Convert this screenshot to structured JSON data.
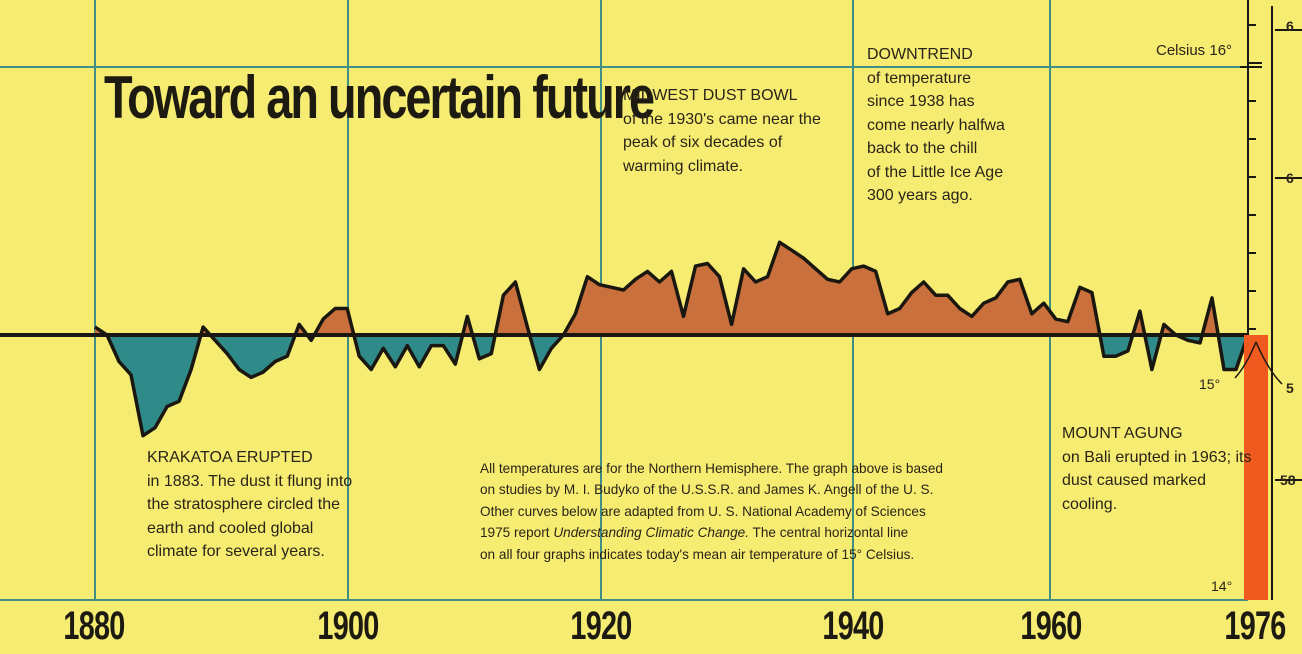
{
  "title": "Toward an uncertain future",
  "annotations": {
    "krakatoa": {
      "head": "KRAKATOA ERUPTED",
      "body": "in 1883. The dust it flung into the stratosphere circled the earth and cooled global climate for several years."
    },
    "dustbowl": {
      "head": "MIDWEST DUST BOWL",
      "body": "of the 1930's came near the peak of six decades of warming climate."
    },
    "downtrend": {
      "head": "DOWNTREND",
      "lines": [
        "of temperature",
        "since 1938 has",
        "come nearly halfwa",
        "back to the chill",
        "of the Little Ice Age",
        "300 years ago."
      ]
    },
    "agung": {
      "head": "MOUNT AGUNG",
      "body": "on Bali erupted in 1963; its dust caused marked cooling."
    }
  },
  "footnote": {
    "line1": "All temperatures are for the Northern Hemisphere. The graph above is based",
    "line2": "on studies by M. I. Budyko of the U.S.S.R. and James K. Angell of the U. S.",
    "line3": "Other curves below are adapted from U. S. National Academy of Sciences",
    "line4a": "1975 report ",
    "line4b": "Understanding Climatic Change.",
    "line4c": " The central horizontal line",
    "line5": "on all four graphs indicates today's mean air temperature of 15° Celsius."
  },
  "scale_labels": {
    "celsius16": "Celsius 16°",
    "c15": "15°",
    "c14": "14°"
  },
  "right_edge_ticks": [
    "6",
    "6",
    "5",
    "58"
  ],
  "colors": {
    "background": "#f6ec72",
    "warm": "#c9703c",
    "cool": "#2f8a8a",
    "line": "#1a1710",
    "grid": "#3f8f86",
    "thermometer": "#f05a1e"
  },
  "chart_data": {
    "type": "area",
    "baseline_label": "15° Celsius (today's mean)",
    "x_ticks": [
      "1880",
      "1900",
      "1920",
      "1940",
      "1960",
      "1976"
    ],
    "xlim": [
      1880,
      1976
    ],
    "ylim": [
      14,
      16
    ],
    "x": [
      1880,
      1881,
      1882,
      1883,
      1884,
      1885,
      1886,
      1887,
      1888,
      1889,
      1890,
      1891,
      1892,
      1893,
      1894,
      1895,
      1896,
      1897,
      1898,
      1899,
      1900,
      1901,
      1902,
      1903,
      1904,
      1905,
      1906,
      1907,
      1908,
      1909,
      1910,
      1911,
      1912,
      1913,
      1914,
      1915,
      1916,
      1917,
      1918,
      1919,
      1920,
      1921,
      1922,
      1923,
      1924,
      1925,
      1926,
      1927,
      1928,
      1929,
      1930,
      1931,
      1932,
      1933,
      1934,
      1935,
      1936,
      1937,
      1938,
      1939,
      1940,
      1941,
      1942,
      1943,
      1944,
      1945,
      1946,
      1947,
      1948,
      1949,
      1950,
      1951,
      1952,
      1953,
      1954,
      1955,
      1956,
      1957,
      1958,
      1959,
      1960,
      1961,
      1962,
      1963,
      1964,
      1965,
      1966,
      1967,
      1968,
      1969,
      1970,
      1971,
      1972,
      1973,
      1974,
      1975,
      1976
    ],
    "values": [
      15.03,
      15.0,
      14.9,
      14.85,
      14.62,
      14.65,
      14.73,
      14.75,
      14.87,
      15.03,
      14.98,
      14.93,
      14.87,
      14.84,
      14.86,
      14.9,
      14.92,
      15.04,
      14.98,
      15.06,
      15.1,
      15.1,
      14.92,
      14.87,
      14.95,
      14.88,
      14.96,
      14.88,
      14.96,
      14.96,
      14.89,
      15.07,
      14.91,
      14.93,
      15.15,
      15.2,
      15.03,
      14.87,
      14.95,
      15.0,
      15.08,
      15.22,
      15.19,
      15.18,
      15.17,
      15.21,
      15.24,
      15.2,
      15.24,
      15.07,
      15.26,
      15.27,
      15.22,
      15.04,
      15.25,
      15.2,
      15.22,
      15.35,
      15.32,
      15.29,
      15.25,
      15.21,
      15.2,
      15.25,
      15.26,
      15.24,
      15.08,
      15.1,
      15.16,
      15.2,
      15.15,
      15.15,
      15.1,
      15.07,
      15.12,
      15.14,
      15.2,
      15.21,
      15.08,
      15.12,
      15.06,
      15.05,
      15.18,
      15.16,
      14.92,
      14.92,
      14.94,
      15.09,
      14.87,
      15.04,
      15.0,
      14.98,
      14.97,
      15.14,
      14.87,
      14.87,
      15.0
    ]
  }
}
